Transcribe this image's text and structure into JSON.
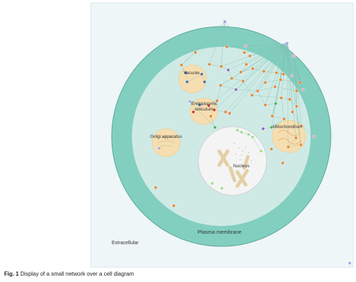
{
  "labels": {
    "vacuole": "Vacuole",
    "er_line1": "Endoplasmic",
    "er_line2": "reticulum",
    "golgi": "Golgi apparatus",
    "mitochondrion": "Mitochondrion",
    "nucleus": "Nucleus",
    "membrane": "Plasma membrane",
    "extracellular": "Extracellular"
  },
  "caption": {
    "label": "Fig. 1",
    "text": "Display of a small network over a cell diagram"
  },
  "colors": {
    "frame_bg": "#eef6f7",
    "membrane": "#82cfc0",
    "cytoplasm": "#cfeae5",
    "organelle": "#f6deb0",
    "nucleus": "#f4f4f4",
    "edge": "#7fbfb3",
    "node_orange": "#e9822f",
    "node_blue": "#3b6fb0",
    "node_red": "#cc3333",
    "node_green": "#4fae4f",
    "node_lightgreen": "#9fdc8f",
    "node_purple": "#8e5cc5",
    "node_lavender": "#a8a6e6",
    "node_pink": "#e7a3c8"
  }
}
